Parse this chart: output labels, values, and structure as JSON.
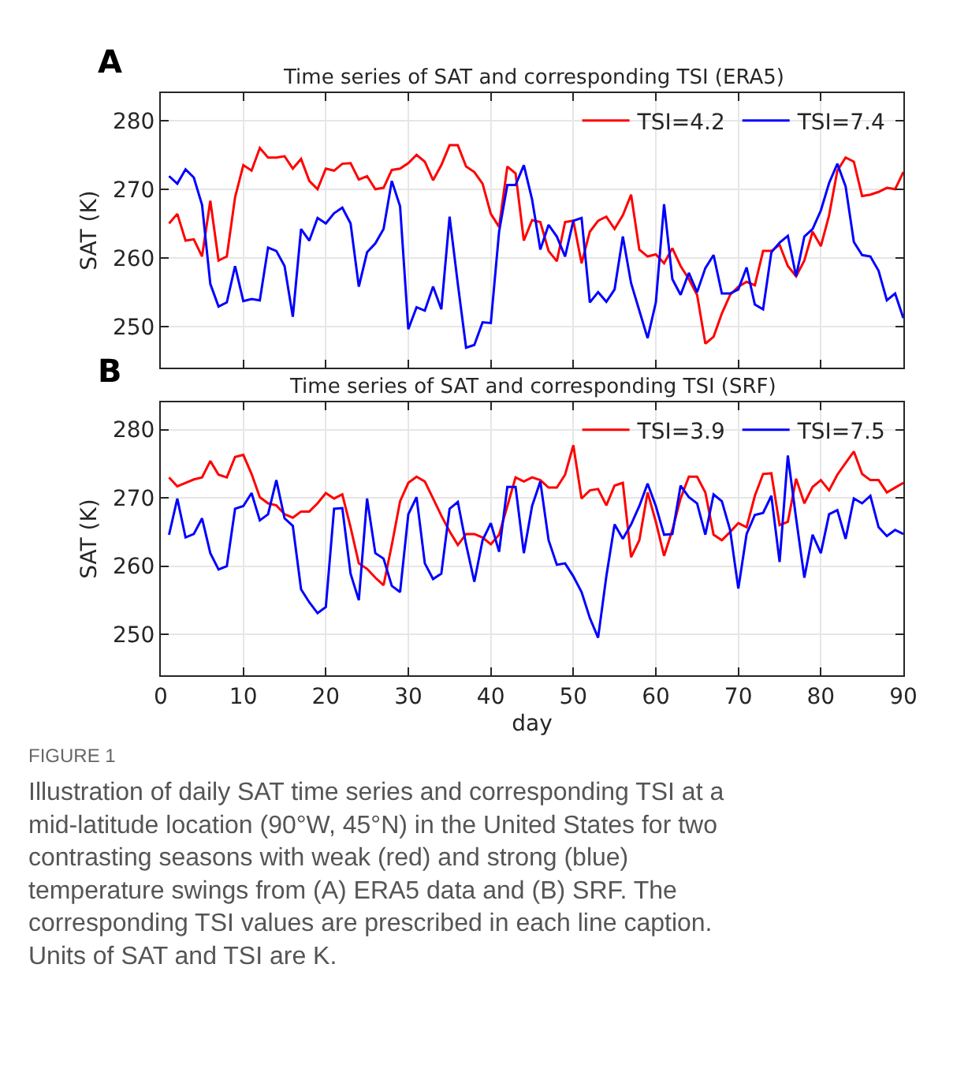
{
  "chart_data": [
    {
      "type": "line",
      "title": "Time series of SAT and corresponding TSI (ERA5)",
      "ylabel": "SAT (K)",
      "x": [
        1,
        2,
        3,
        4,
        5,
        6,
        7,
        8,
        9,
        10,
        11,
        12,
        13,
        14,
        15,
        16,
        17,
        18,
        19,
        20,
        21,
        22,
        23,
        24,
        25,
        26,
        27,
        28,
        29,
        30,
        31,
        32,
        33,
        34,
        35,
        36,
        37,
        38,
        39,
        40,
        41,
        42,
        43,
        44,
        45,
        46,
        47,
        48,
        49,
        50,
        51,
        52,
        53,
        54,
        55,
        56,
        57,
        58,
        59,
        60,
        61,
        62,
        63,
        64,
        65,
        66,
        67,
        68,
        69,
        70,
        71,
        72,
        73,
        74,
        75,
        76,
        77,
        78,
        79,
        80,
        81,
        82,
        83,
        84,
        85,
        86,
        87,
        88,
        89,
        90
      ],
      "series": [
        {
          "name": "TSI=4.2",
          "color": "#ff0000",
          "values": [
            265,
            266.4,
            262.5,
            262.7,
            260.2,
            268.3,
            259.6,
            260.2,
            268.8,
            273.5,
            272.7,
            276,
            274.6,
            274.6,
            274.8,
            273,
            274.4,
            271.2,
            270,
            273,
            272.7,
            273.7,
            273.8,
            271.4,
            271.9,
            270,
            270.2,
            272.8,
            273,
            273.8,
            275,
            274,
            271.3,
            273.5,
            276.4,
            276.4,
            273.3,
            272.5,
            270.8,
            266.4,
            264.5,
            273.3,
            272.3,
            262.5,
            265.5,
            265.2,
            261,
            259.5,
            265.2,
            265.4,
            259.2,
            263.8,
            265.4,
            266,
            264.2,
            266.2,
            269.2,
            261.2,
            260.2,
            260.5,
            259.2,
            261.4,
            258.8,
            256.9,
            254.6,
            247.5,
            248.5,
            251.9,
            254.6,
            255.8,
            256.5,
            256,
            261,
            261,
            261.9,
            258.8,
            257.3,
            259.6,
            263.8,
            261.7,
            266.2,
            272.7,
            274.6,
            274,
            269,
            269.2,
            269.6,
            270.2,
            270,
            272.5
          ]
        },
        {
          "name": "TSI=7.4",
          "color": "#0000ff",
          "values": [
            271.9,
            270.8,
            272.9,
            271.7,
            267.7,
            256.2,
            252.9,
            253.5,
            258.8,
            253.7,
            254,
            253.8,
            261.5,
            261,
            258.8,
            251.4,
            264.2,
            262.5,
            265.8,
            265,
            266.5,
            267.3,
            265,
            255.8,
            260.8,
            262.1,
            264.2,
            271.2,
            267.5,
            249.6,
            252.8,
            252.3,
            255.8,
            252.5,
            266,
            256.2,
            246.9,
            247.3,
            250.6,
            250.5,
            263.8,
            270.6,
            270.6,
            273.5,
            268.5,
            261.2,
            264.8,
            263.1,
            260.2,
            265.4,
            265.8,
            253.5,
            255,
            253.6,
            255.4,
            263.1,
            256.3,
            252.3,
            248.3,
            253.5,
            267.8,
            256.9,
            254.6,
            257.8,
            255,
            258.5,
            260.4,
            254.8,
            254.8,
            255.4,
            258.6,
            253.2,
            252.5,
            260.8,
            262.2,
            263.2,
            257.3,
            263.1,
            264.2,
            266.9,
            270.9,
            273.7,
            270.4,
            262.3,
            260.4,
            260.2,
            258.1,
            253.8,
            254.8,
            251.2
          ]
        }
      ],
      "xlim": [
        0,
        90
      ],
      "xticks": [
        0,
        10,
        20,
        30,
        40,
        50,
        60,
        70,
        80,
        90
      ],
      "ylim": [
        244,
        284
      ],
      "yticks": [
        250,
        260,
        270,
        280
      ],
      "tick_labels": "y",
      "grid": true,
      "legend": "top right",
      "marker": "none",
      "line_style": "solid",
      "annotations": [
        "A"
      ]
    },
    {
      "type": "line",
      "title": "Time series of SAT and corresponding TSI (SRF)",
      "ylabel": "SAT (K)",
      "xlabel": "day",
      "x": [
        1,
        2,
        3,
        4,
        5,
        6,
        7,
        8,
        9,
        10,
        11,
        12,
        13,
        14,
        15,
        16,
        17,
        18,
        19,
        20,
        21,
        22,
        23,
        24,
        25,
        26,
        27,
        28,
        29,
        30,
        31,
        32,
        33,
        34,
        35,
        36,
        37,
        38,
        39,
        40,
        41,
        42,
        43,
        44,
        45,
        46,
        47,
        48,
        49,
        50,
        51,
        52,
        53,
        54,
        55,
        56,
        57,
        58,
        59,
        60,
        61,
        62,
        63,
        64,
        65,
        66,
        67,
        68,
        69,
        70,
        71,
        72,
        73,
        74,
        75,
        76,
        77,
        78,
        79,
        80,
        81,
        82,
        83,
        84,
        85,
        86,
        87,
        88,
        89,
        90
      ],
      "series": [
        {
          "name": "TSI=3.9",
          "color": "#ff0000",
          "values": [
            273,
            271.7,
            272.2,
            272.7,
            273,
            275.4,
            273.4,
            273,
            276,
            276.3,
            273.5,
            270.1,
            269.2,
            268.9,
            267.6,
            267.1,
            268,
            268,
            269.2,
            270.7,
            269.9,
            270.5,
            265.7,
            260.4,
            259.6,
            258.3,
            257.2,
            263.1,
            269.5,
            272.2,
            273.1,
            272.4,
            269.9,
            267.4,
            265.1,
            263.1,
            264.7,
            264.7,
            264.2,
            263.2,
            264.6,
            268.8,
            273,
            272.4,
            273,
            272.6,
            271.5,
            271.5,
            273.4,
            277.7,
            269.9,
            271.1,
            271.3,
            268.9,
            271.8,
            272.2,
            261.3,
            263.8,
            270.8,
            266.5,
            261.5,
            265.3,
            269.9,
            273.1,
            273.1,
            270.8,
            264.6,
            263.8,
            265,
            266.3,
            265.7,
            270.3,
            273.5,
            273.6,
            266,
            266.5,
            272.8,
            269.2,
            271.6,
            272.6,
            271.1,
            273.4,
            275.1,
            276.8,
            273.5,
            272.6,
            272.6,
            270.8,
            271.5,
            272.2
          ]
        },
        {
          "name": "TSI=7.5",
          "color": "#0000ff",
          "values": [
            264.6,
            269.9,
            264.2,
            264.7,
            267,
            261.9,
            259.5,
            260,
            268.4,
            268.8,
            270.7,
            266.7,
            267.6,
            272.6,
            267,
            265.9,
            256.6,
            254.7,
            253.1,
            254,
            268.4,
            268.5,
            258.9,
            255,
            269.9,
            261.9,
            261.1,
            257.1,
            256.2,
            267.6,
            270.1,
            260.4,
            258.1,
            258.9,
            268.4,
            269.4,
            263.2,
            257.7,
            263.8,
            266.3,
            262.1,
            271.6,
            271.6,
            261.9,
            268.8,
            272.4,
            263.8,
            260.2,
            260.4,
            258.5,
            256.2,
            252.4,
            249.5,
            258.5,
            266.1,
            264,
            266.1,
            268.8,
            272.1,
            268.8,
            264.6,
            264.7,
            271.8,
            270.1,
            269.2,
            264.6,
            270.5,
            269.5,
            265.3,
            256.7,
            264.7,
            267.5,
            267.8,
            270.3,
            260.6,
            276.2,
            267,
            258.3,
            264.6,
            261.9,
            267.6,
            268.2,
            264,
            269.9,
            269.2,
            270.3,
            265.7,
            264.4,
            265.3,
            264.7
          ]
        }
      ],
      "xlim": [
        0,
        90
      ],
      "xticks": [
        0,
        10,
        20,
        30,
        40,
        50,
        60,
        70,
        80,
        90
      ],
      "ylim": [
        244,
        284
      ],
      "yticks": [
        250,
        260,
        270,
        280
      ],
      "grid": true,
      "legend": "top right",
      "marker": "none",
      "line_style": "solid",
      "annotations": [
        "B",
        "FIGURE 1",
        "Illustration of daily SAT time series and corresponding TSI at a mid-latitude location (90°W, 45°N) in the United States for two contrasting seasons with weak (red) and strong (blue) temperature swings from (A) ERA5 data and (B) SRF. The corresponding TSI values are prescribed in each line caption. Units of SAT and TSI are K."
      ]
    }
  ]
}
